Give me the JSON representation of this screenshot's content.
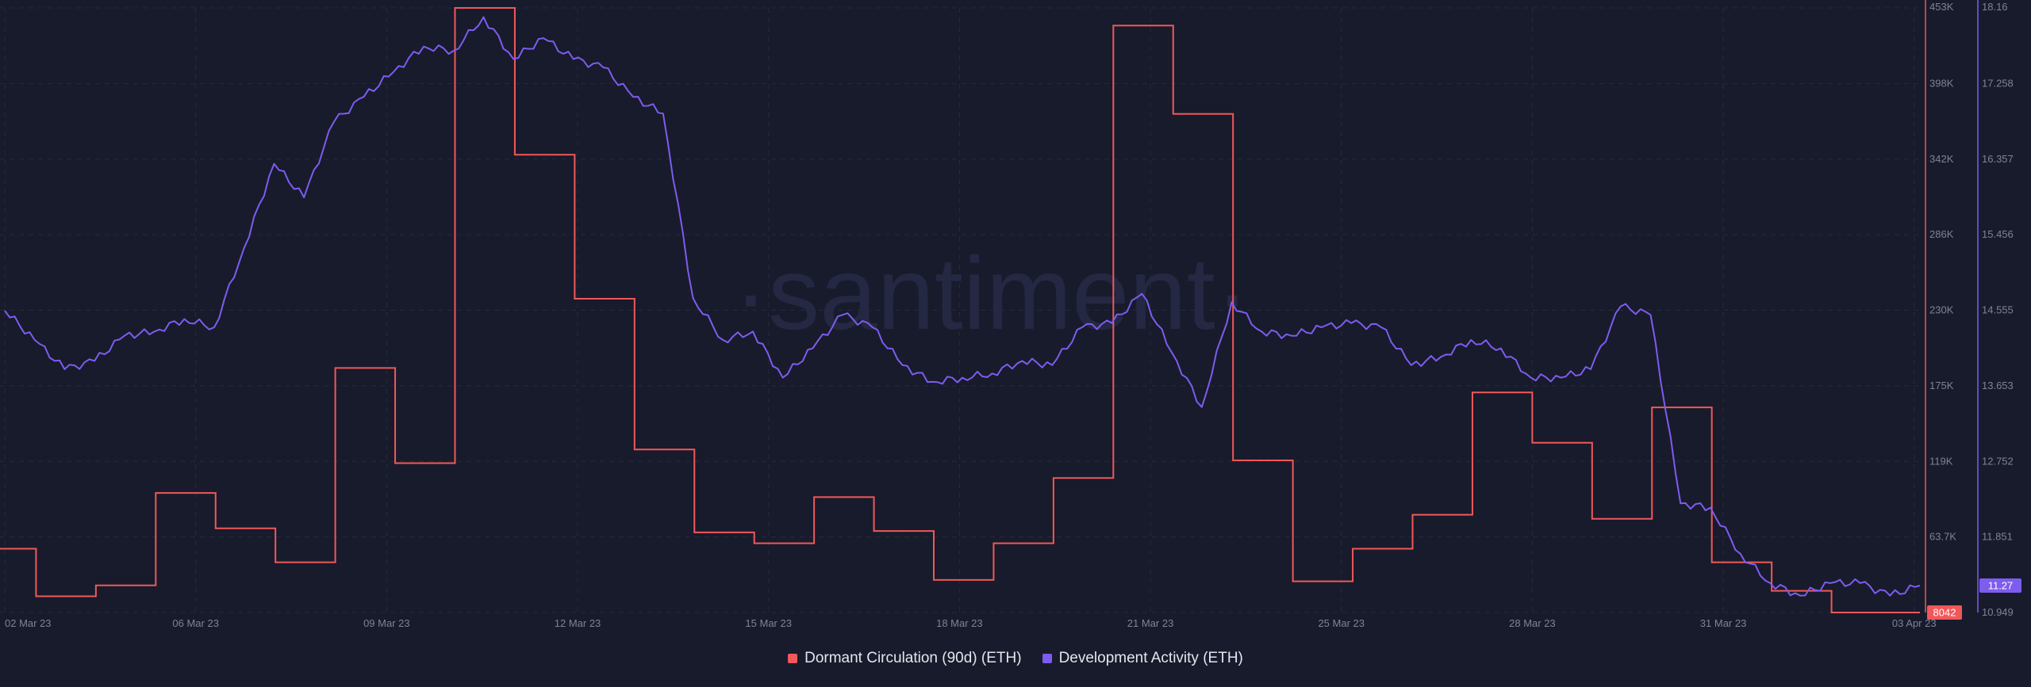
{
  "watermark": "·santiment·",
  "chart_data": {
    "type": "line",
    "x_tick_labels": [
      "02 Mar 23",
      "06 Mar 23",
      "09 Mar 23",
      "12 Mar 23",
      "15 Mar 23",
      "18 Mar 23",
      "21 Mar 23",
      "25 Mar 23",
      "28 Mar 23",
      "31 Mar 23",
      "03 Apr 23"
    ],
    "x_range": [
      "2023-03-02",
      "2023-04-03"
    ],
    "grid": true,
    "legend_position": "bottom-center",
    "series": [
      {
        "name": "Dormant Circulation (90d) (ETH)",
        "color": "#f0585a",
        "axis": "left-of-right",
        "shape": "step",
        "axis_ticks": [
          "453K",
          "398K",
          "342K",
          "286K",
          "230K",
          "175K",
          "119K",
          "63.7K",
          "8042"
        ],
        "ylim": [
          8042,
          453000
        ],
        "current_value_label": "8042",
        "points": [
          [
            "2023-03-02",
            55000
          ],
          [
            "2023-03-03",
            20000
          ],
          [
            "2023-03-04",
            28000
          ],
          [
            "2023-03-05",
            96000
          ],
          [
            "2023-03-06",
            70000
          ],
          [
            "2023-03-07",
            45000
          ],
          [
            "2023-03-08",
            188000
          ],
          [
            "2023-03-09",
            118000
          ],
          [
            "2023-03-10",
            453000
          ],
          [
            "2023-03-11",
            345000
          ],
          [
            "2023-03-12",
            239000
          ],
          [
            "2023-03-13",
            128000
          ],
          [
            "2023-03-14",
            67000
          ],
          [
            "2023-03-15",
            59000
          ],
          [
            "2023-03-16",
            93000
          ],
          [
            "2023-03-17",
            68000
          ],
          [
            "2023-03-18",
            32000
          ],
          [
            "2023-03-19",
            59000
          ],
          [
            "2023-03-20",
            107000
          ],
          [
            "2023-03-21",
            440000
          ],
          [
            "2023-03-22",
            375000
          ],
          [
            "2023-03-23",
            120000
          ],
          [
            "2023-03-24",
            31000
          ],
          [
            "2023-03-25",
            55000
          ],
          [
            "2023-03-26",
            80000
          ],
          [
            "2023-03-27",
            170000
          ],
          [
            "2023-03-28",
            133000
          ],
          [
            "2023-03-29",
            77000
          ],
          [
            "2023-03-30",
            159000
          ],
          [
            "2023-03-31",
            45000
          ],
          [
            "2023-04-01",
            24000
          ],
          [
            "2023-04-02",
            8042
          ],
          [
            "2023-04-03",
            8042
          ]
        ]
      },
      {
        "name": "Development Activity (ETH)",
        "color": "#7d5cf0",
        "axis": "right",
        "shape": "line",
        "axis_ticks": [
          "18.16",
          "17.258",
          "16.357",
          "15.456",
          "14.555",
          "13.653",
          "12.752",
          "11.851",
          "10.949"
        ],
        "ylim": [
          10.949,
          18.16
        ],
        "current_value_label": "11.27",
        "points": [
          [
            "2023-03-02",
            14.55
          ],
          [
            "2023-03-02T12",
            14.2
          ],
          [
            "2023-03-03",
            13.85
          ],
          [
            "2023-03-03T12",
            13.95
          ],
          [
            "2023-03-04",
            14.25
          ],
          [
            "2023-03-04T12",
            14.3
          ],
          [
            "2023-03-05",
            14.45
          ],
          [
            "2023-03-05T12",
            14.35
          ],
          [
            "2023-03-06",
            15.3
          ],
          [
            "2023-03-06T12",
            16.3
          ],
          [
            "2023-03-07",
            15.9
          ],
          [
            "2023-03-07T12",
            16.8
          ],
          [
            "2023-03-08",
            17.1
          ],
          [
            "2023-03-08T12",
            17.4
          ],
          [
            "2023-03-09",
            17.7
          ],
          [
            "2023-03-09T12",
            17.65
          ],
          [
            "2023-03-10",
            18.05
          ],
          [
            "2023-03-10T12",
            17.55
          ],
          [
            "2023-03-11",
            17.8
          ],
          [
            "2023-03-11T12",
            17.55
          ],
          [
            "2023-03-12",
            17.45
          ],
          [
            "2023-03-12T12",
            17.1
          ],
          [
            "2023-03-13",
            16.9
          ],
          [
            "2023-03-13T12",
            14.7
          ],
          [
            "2023-03-14",
            14.2
          ],
          [
            "2023-03-14T12",
            14.3
          ],
          [
            "2023-03-15",
            13.75
          ],
          [
            "2023-03-15T12",
            14.1
          ],
          [
            "2023-03-16",
            14.5
          ],
          [
            "2023-03-16T12",
            14.35
          ],
          [
            "2023-03-17",
            13.9
          ],
          [
            "2023-03-17T12",
            13.7
          ],
          [
            "2023-03-18",
            13.75
          ],
          [
            "2023-03-18T12",
            13.8
          ],
          [
            "2023-03-19",
            13.95
          ],
          [
            "2023-03-19T12",
            13.9
          ],
          [
            "2023-03-20",
            14.35
          ],
          [
            "2023-03-20T12",
            14.4
          ],
          [
            "2023-03-21",
            14.75
          ],
          [
            "2023-03-21T12",
            14.05
          ],
          [
            "2023-03-22",
            13.4
          ],
          [
            "2023-03-22T12",
            14.65
          ],
          [
            "2023-03-23",
            14.3
          ],
          [
            "2023-03-23T12",
            14.25
          ],
          [
            "2023-03-24",
            14.35
          ],
          [
            "2023-03-24T12",
            14.4
          ],
          [
            "2023-03-25",
            14.35
          ],
          [
            "2023-03-25T12",
            13.9
          ],
          [
            "2023-03-26",
            14.0
          ],
          [
            "2023-03-26T12",
            14.2
          ],
          [
            "2023-03-27",
            14.1
          ],
          [
            "2023-03-27T12",
            13.75
          ],
          [
            "2023-03-28",
            13.75
          ],
          [
            "2023-03-28T12",
            13.85
          ],
          [
            "2023-03-29",
            14.6
          ],
          [
            "2023-03-29T12",
            14.5
          ],
          [
            "2023-03-30",
            12.25
          ],
          [
            "2023-03-30T12",
            12.2
          ],
          [
            "2023-03-31",
            11.65
          ],
          [
            "2023-03-31T12",
            11.3
          ],
          [
            "2023-04-01",
            11.15
          ],
          [
            "2023-04-01T12",
            11.3
          ],
          [
            "2023-04-02",
            11.3
          ],
          [
            "2023-04-02T12",
            11.15
          ],
          [
            "2023-04-03",
            11.27
          ]
        ]
      }
    ]
  }
}
